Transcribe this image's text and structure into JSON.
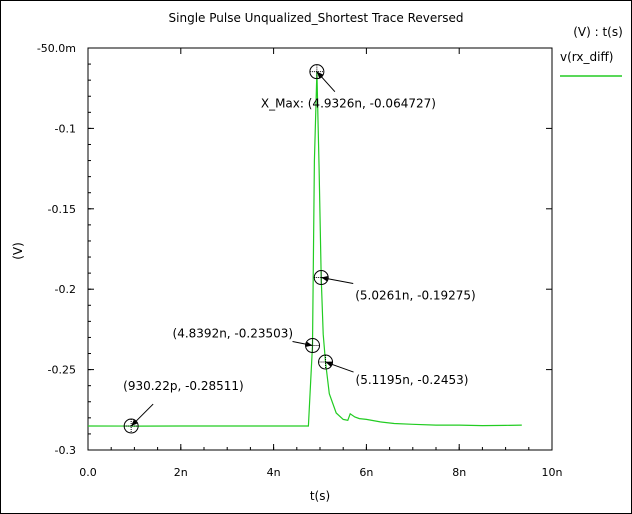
{
  "chart_data": {
    "type": "line",
    "title": "Single Pulse Unqualized_Shortest Trace Reversed",
    "xlabel": "t(s)",
    "ylabel": "(V)",
    "xlim": [
      0,
      10
    ],
    "ylim": [
      -0.3,
      -0.05
    ],
    "x_unit": "n",
    "x_ticks": [
      "0.0",
      "2n",
      "4n",
      "6n",
      "8n",
      "10n"
    ],
    "y_ticks": [
      "-50.0m",
      "-0.1",
      "-0.15",
      "-0.2",
      "-0.25",
      "-0.3"
    ],
    "legend_header": "(V) : t(s)",
    "grid": false,
    "series": [
      {
        "name": "v(rx_diff)",
        "color": "#22cc22",
        "x": [
          0.0,
          1.0,
          2.0,
          3.0,
          4.0,
          4.6,
          4.75,
          4.78,
          4.8392,
          4.88,
          4.9326,
          4.98,
          5.0261,
          5.07,
          5.1195,
          5.2,
          5.35,
          5.5,
          5.6,
          5.65,
          5.75,
          5.85,
          6.0,
          6.3,
          6.6,
          7.0,
          7.5,
          8.0,
          8.5,
          9.0,
          9.35
        ],
        "values": [
          -0.2851,
          -0.28511,
          -0.2851,
          -0.2851,
          -0.2851,
          -0.2851,
          -0.2851,
          -0.268,
          -0.23503,
          -0.12,
          -0.064727,
          -0.125,
          -0.19275,
          -0.228,
          -0.2453,
          -0.265,
          -0.277,
          -0.281,
          -0.2815,
          -0.2775,
          -0.2795,
          -0.2805,
          -0.281,
          -0.2825,
          -0.2835,
          -0.284,
          -0.2845,
          -0.2845,
          -0.2848,
          -0.2847,
          -0.2845
        ]
      }
    ],
    "markers": [
      {
        "x": 0.93022,
        "y": -0.28511,
        "label": "(930.22p, -0.28511)"
      },
      {
        "x": 4.8392,
        "y": -0.23503,
        "label": "(4.8392n, -0.23503)"
      },
      {
        "x": 4.9326,
        "y": -0.064727,
        "label": "X_Max: (4.9326n, -0.064727)"
      },
      {
        "x": 5.0261,
        "y": -0.19275,
        "label": "(5.0261n, -0.19275)"
      },
      {
        "x": 5.1195,
        "y": -0.2453,
        "label": "(5.1195n, -0.2453)"
      }
    ]
  }
}
